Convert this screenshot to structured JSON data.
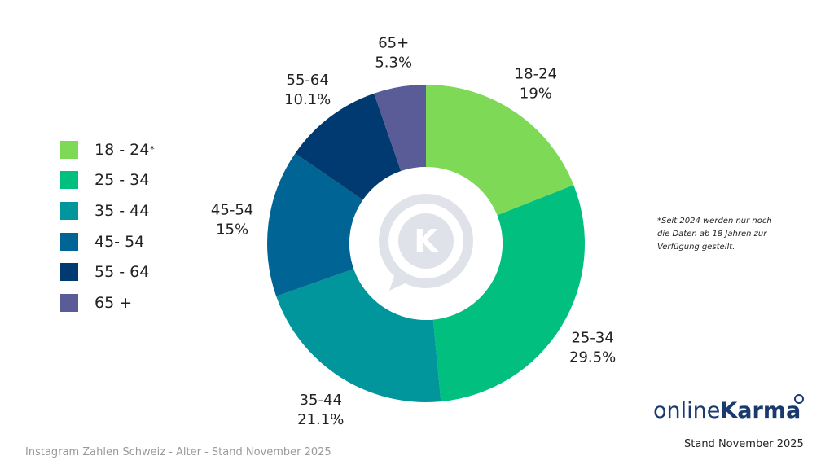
{
  "chart_data": {
    "type": "pie",
    "categories": [
      "18-24",
      "25-34",
      "35-44",
      "45-54",
      "55-64",
      "65+"
    ],
    "values": [
      19,
      29.5,
      21.1,
      15,
      10.1,
      5.3
    ],
    "value_labels": [
      "19%",
      "29.5%",
      "21.1%",
      "15%",
      "10.1%",
      "5.3%"
    ],
    "colors": [
      "#7ed957",
      "#00bf7f",
      "#00969b",
      "#006494",
      "#003a70",
      "#5a5c97"
    ],
    "legend": {
      "placement": "left",
      "entries": [
        "18 - 24",
        "25 - 34",
        "35 - 44",
        "45- 54",
        "55 - 64",
        "65 +"
      ],
      "marker": "*"
    }
  },
  "footnote": {
    "lines": [
      "*Seit 2024 werden nur noch",
      "die Daten ab 18 Jahren zur",
      "Verfügung gestellt."
    ]
  },
  "brand": {
    "light": "online",
    "strong": "Karma"
  },
  "center_logo": {
    "icon": "k-chat-bubble-icon",
    "letter": "K"
  },
  "stand_label": "Stand November 2025",
  "caption": "Instagram Zahlen Schweiz - Alter - Stand November 2025"
}
